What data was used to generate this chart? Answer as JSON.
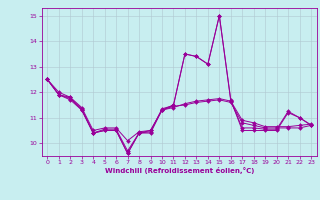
{
  "xlabel": "Windchill (Refroidissement éolien,°C)",
  "background_color": "#c8eef0",
  "line_color": "#990099",
  "grid_color": "#b0c8d0",
  "x": [
    0,
    1,
    2,
    3,
    4,
    5,
    6,
    7,
    8,
    9,
    10,
    11,
    12,
    13,
    14,
    15,
    16,
    17,
    18,
    19,
    20,
    21,
    22,
    23
  ],
  "curve1": [
    12.5,
    11.9,
    11.8,
    11.3,
    10.4,
    10.5,
    10.5,
    9.6,
    10.4,
    10.4,
    11.3,
    11.5,
    13.5,
    13.4,
    13.1,
    15.0,
    11.7,
    10.5,
    10.5,
    10.5,
    10.5,
    11.2,
    11.0,
    10.7
  ],
  "curve2": [
    12.5,
    11.9,
    11.75,
    11.35,
    10.4,
    10.55,
    10.55,
    9.7,
    10.4,
    10.45,
    11.35,
    11.48,
    13.5,
    13.4,
    13.1,
    15.0,
    11.65,
    10.6,
    10.6,
    10.55,
    10.55,
    11.25,
    11.0,
    10.72
  ],
  "curve3": [
    12.5,
    11.9,
    11.7,
    11.3,
    10.4,
    10.5,
    10.5,
    9.6,
    10.4,
    10.5,
    11.3,
    11.45,
    11.5,
    11.6,
    11.65,
    11.7,
    11.6,
    10.8,
    10.7,
    10.6,
    10.6,
    10.6,
    10.6,
    10.7
  ],
  "curve4": [
    12.5,
    12.0,
    11.8,
    11.4,
    10.5,
    10.6,
    10.6,
    10.1,
    10.45,
    10.5,
    11.3,
    11.4,
    11.55,
    11.65,
    11.7,
    11.75,
    11.65,
    10.9,
    10.8,
    10.65,
    10.65,
    10.65,
    10.7,
    10.75
  ],
  "ylim": [
    9.5,
    15.3
  ],
  "xlim": [
    -0.5,
    23.5
  ],
  "yticks": [
    10,
    11,
    12,
    13,
    14,
    15
  ],
  "xticks": [
    0,
    1,
    2,
    3,
    4,
    5,
    6,
    7,
    8,
    9,
    10,
    11,
    12,
    13,
    14,
    15,
    16,
    17,
    18,
    19,
    20,
    21,
    22,
    23
  ],
  "figsize": [
    3.2,
    2.0
  ],
  "dpi": 100
}
